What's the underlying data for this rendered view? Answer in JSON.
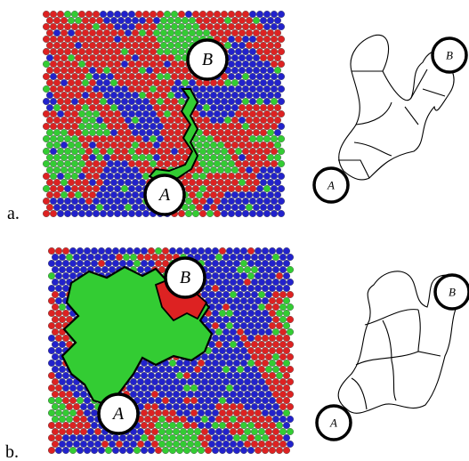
{
  "panels": [
    {
      "label": "a.",
      "grid_labels": [
        "A",
        "B"
      ],
      "diagram_labels": [
        "A",
        "B"
      ]
    },
    {
      "label": "b.",
      "grid_labels": [
        "A",
        "B"
      ],
      "diagram_labels": [
        "A",
        "B"
      ]
    }
  ]
}
